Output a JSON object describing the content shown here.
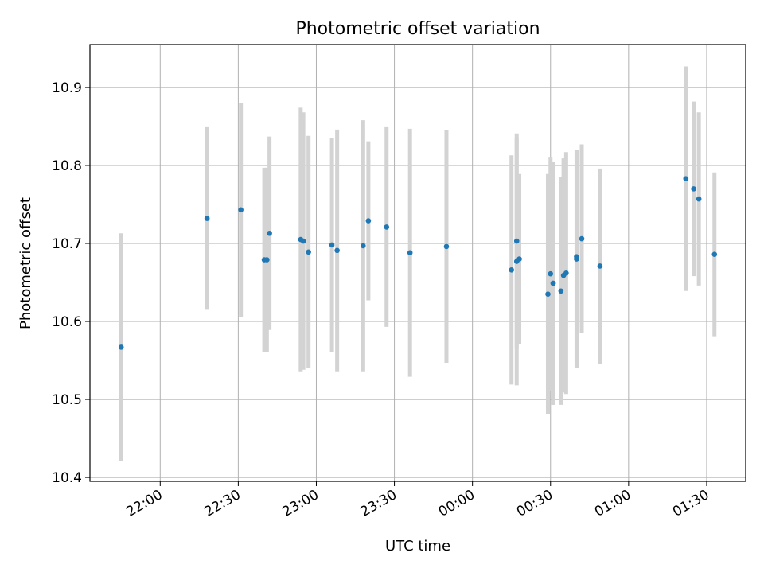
{
  "chart_data": {
    "type": "scatter",
    "title": "Photometric offset variation",
    "xlabel": "UTC time",
    "ylabel": "Photometric offset",
    "x_is_time": true,
    "xlim": [
      "21:33",
      "01:45"
    ],
    "ylim": [
      10.395,
      10.955
    ],
    "grid": true,
    "x_ticks": [
      "22:00",
      "22:30",
      "23:00",
      "23:30",
      "00:00",
      "00:30",
      "01:00",
      "01:30"
    ],
    "y_ticks": [
      "10.4",
      "10.5",
      "10.6",
      "10.7",
      "10.8",
      "10.9"
    ],
    "y_tick_values": [
      10.4,
      10.5,
      10.6,
      10.7,
      10.8,
      10.9
    ],
    "marker_color": "#1f77b4",
    "errorbar_color": "#d3d3d3",
    "series": [
      {
        "x": [
          "21:45",
          "22:18",
          "22:31",
          "22:40",
          "22:41",
          "22:42",
          "22:54",
          "22:55",
          "22:57",
          "23:06",
          "23:08",
          "23:18",
          "23:20",
          "23:27",
          "23:36",
          "23:50",
          "00:15",
          "00:17",
          "00:17",
          "00:18",
          "00:29",
          "00:30",
          "00:31",
          "00:31",
          "00:34",
          "00:35",
          "00:36",
          "00:40",
          "00:40",
          "00:42",
          "00:49",
          "01:22",
          "01:25",
          "01:27",
          "01:33"
        ],
        "y": [
          10.567,
          10.732,
          10.743,
          10.679,
          10.679,
          10.713,
          10.705,
          10.703,
          10.689,
          10.698,
          10.691,
          10.697,
          10.729,
          10.721,
          10.688,
          10.696,
          10.666,
          10.677,
          10.703,
          10.68,
          10.635,
          10.661,
          10.649,
          10.649,
          10.639,
          10.659,
          10.662,
          10.68,
          10.683,
          10.706,
          10.671,
          10.783,
          10.77,
          10.757,
          10.686
        ],
        "yerr": [
          0.146,
          0.117,
          0.137,
          0.118,
          0.118,
          0.124,
          0.169,
          0.165,
          0.149,
          0.137,
          0.155,
          0.161,
          0.102,
          0.128,
          0.159,
          0.149,
          0.147,
          0.159,
          0.138,
          0.109,
          0.154,
          0.15,
          0.156,
          0.156,
          0.146,
          0.15,
          0.155,
          0.14,
          0.137,
          0.121,
          0.125,
          0.144,
          0.112,
          0.111,
          0.105
        ]
      }
    ]
  }
}
